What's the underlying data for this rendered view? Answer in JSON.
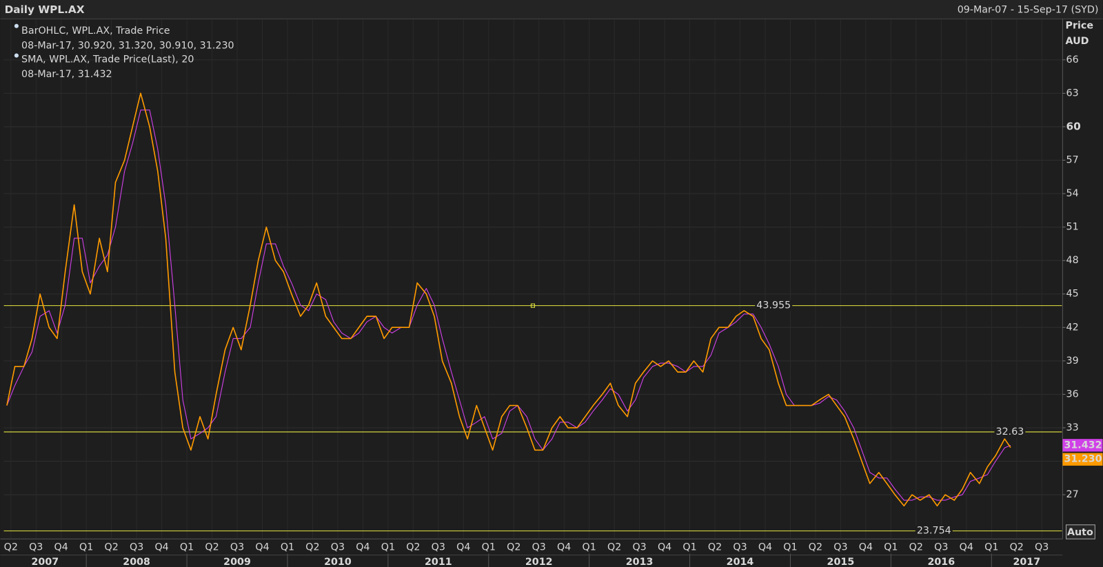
{
  "chart_data": {
    "type": "line",
    "title": "Daily WPL.AX",
    "subtitle": "09-Mar-07 - 15-Sep-17 (SYD)",
    "y_label": "Price",
    "y_unit": "AUD",
    "scale_mode": "Auto",
    "x": [
      2007.21,
      2007.29,
      2007.38,
      2007.46,
      2007.54,
      2007.63,
      2007.71,
      2007.79,
      2007.88,
      2007.96,
      2008.04,
      2008.13,
      2008.21,
      2008.29,
      2008.38,
      2008.46,
      2008.54,
      2008.63,
      2008.71,
      2008.79,
      2008.88,
      2008.96,
      2009.04,
      2009.13,
      2009.21,
      2009.29,
      2009.38,
      2009.46,
      2009.54,
      2009.63,
      2009.71,
      2009.79,
      2009.88,
      2009.96,
      2010.04,
      2010.13,
      2010.21,
      2010.29,
      2010.38,
      2010.46,
      2010.54,
      2010.63,
      2010.71,
      2010.79,
      2010.88,
      2010.96,
      2011.04,
      2011.13,
      2011.21,
      2011.29,
      2011.38,
      2011.46,
      2011.54,
      2011.63,
      2011.71,
      2011.79,
      2011.88,
      2011.96,
      2012.04,
      2012.13,
      2012.21,
      2012.29,
      2012.38,
      2012.46,
      2012.54,
      2012.63,
      2012.71,
      2012.79,
      2012.88,
      2012.96,
      2013.04,
      2013.13,
      2013.21,
      2013.29,
      2013.38,
      2013.46,
      2013.54,
      2013.63,
      2013.71,
      2013.79,
      2013.88,
      2013.96,
      2014.04,
      2014.13,
      2014.21,
      2014.29,
      2014.38,
      2014.46,
      2014.54,
      2014.63,
      2014.71,
      2014.79,
      2014.88,
      2014.96,
      2015.04,
      2015.13,
      2015.21,
      2015.29,
      2015.38,
      2015.46,
      2015.54,
      2015.63,
      2015.71,
      2015.79,
      2015.88,
      2015.96,
      2016.04,
      2016.13,
      2016.21,
      2016.29,
      2016.38,
      2016.46,
      2016.54,
      2016.63,
      2016.71,
      2016.79,
      2016.88,
      2016.96,
      2017.04,
      2017.13,
      2017.19
    ],
    "series": [
      {
        "name": "BarOHLC, WPL.AX, Trade Price",
        "readout": "08-Mar-17, 30.920, 31.320, 30.910, 31.230",
        "color": "#ff9a00",
        "last_value_label": "31.230",
        "values": [
          35,
          38.5,
          38.5,
          41,
          45,
          42,
          41,
          47,
          53,
          47,
          45,
          50,
          47,
          55,
          57,
          60,
          63,
          60,
          56,
          50,
          38,
          33,
          31,
          34,
          32,
          36,
          40,
          42,
          40,
          44,
          48,
          51,
          48,
          47,
          45,
          43,
          44,
          46,
          43,
          42,
          41,
          41,
          42,
          43,
          43,
          41,
          42,
          42,
          42,
          46,
          45,
          43,
          39,
          37,
          34,
          32,
          35,
          33,
          31,
          34,
          35,
          35,
          33,
          31,
          31,
          33,
          34,
          33,
          33,
          34,
          35,
          36,
          37,
          35,
          34,
          37,
          38,
          39,
          38.5,
          39,
          38,
          38,
          39,
          38,
          41,
          42,
          42,
          43,
          43.5,
          43,
          41,
          40,
          37,
          35,
          35,
          35,
          35,
          35.5,
          36,
          35,
          34,
          32,
          30,
          28,
          29,
          28,
          27,
          26,
          27,
          26.5,
          27,
          26,
          27,
          26.5,
          27.5,
          29,
          28,
          29.5,
          30.5,
          32,
          31.23
        ]
      },
      {
        "name": "SMA, WPL.AX, Trade Price(Last),  20",
        "readout": "08-Mar-17, 31.432",
        "color": "#d040e8",
        "last_value_label": "31.432",
        "values": [
          35,
          36.8,
          38.5,
          39.8,
          43,
          43.5,
          41.5,
          44,
          50,
          50,
          46,
          47.5,
          48.5,
          51,
          56,
          58.5,
          61.5,
          61.5,
          58,
          53,
          44,
          35.5,
          32,
          32.5,
          33,
          34,
          38,
          41,
          41,
          42,
          46,
          49.5,
          49.5,
          47.5,
          46,
          44,
          43.5,
          45,
          44.5,
          42.5,
          41.5,
          41,
          41.5,
          42.5,
          43,
          42,
          41.5,
          42,
          42,
          44,
          45.5,
          44,
          41,
          38,
          35.5,
          33,
          33.5,
          34,
          32,
          32.5,
          34.5,
          35,
          34,
          32,
          31,
          32,
          33.5,
          33.5,
          33,
          33.5,
          34.5,
          35.5,
          36.5,
          36,
          34.5,
          35.5,
          37.5,
          38.5,
          38.8,
          38.8,
          38.5,
          38,
          38.5,
          38.5,
          39.5,
          41.5,
          42,
          42.5,
          43.2,
          43.2,
          42,
          40.5,
          38.5,
          36,
          35,
          35,
          35,
          35.2,
          35.8,
          35.5,
          34.5,
          33,
          31,
          29,
          28.5,
          28.5,
          27.5,
          26.5,
          26.5,
          26.8,
          26.8,
          26.5,
          26.5,
          26.8,
          27,
          28.2,
          28.5,
          28.8,
          30,
          31.2,
          31.432
        ]
      }
    ],
    "hlines": [
      43.955,
      32.63,
      23.754
    ],
    "hline_color": "#e8e840",
    "xlim": [
      2007.18,
      2017.7
    ],
    "ylim": [
      23.1,
      69.6
    ],
    "yticks": [
      27,
      30,
      33,
      36,
      39,
      42,
      45,
      48,
      51,
      54,
      57,
      60,
      63,
      66
    ],
    "bold_yticks": [
      30,
      60
    ],
    "xticks": [
      {
        "value": 2007.25,
        "label": "Q2"
      },
      {
        "value": 2007.5,
        "label": "Q3"
      },
      {
        "value": 2007.75,
        "label": "Q4"
      },
      {
        "value": 2008,
        "label": "Q1"
      },
      {
        "value": 2008.25,
        "label": "Q2"
      },
      {
        "value": 2008.5,
        "label": "Q3"
      },
      {
        "value": 2008.75,
        "label": "Q4"
      },
      {
        "value": 2009,
        "label": "Q1"
      },
      {
        "value": 2009.25,
        "label": "Q2"
      },
      {
        "value": 2009.5,
        "label": "Q3"
      },
      {
        "value": 2009.75,
        "label": "Q4"
      },
      {
        "value": 2010,
        "label": "Q1"
      },
      {
        "value": 2010.25,
        "label": "Q2"
      },
      {
        "value": 2010.5,
        "label": "Q3"
      },
      {
        "value": 2010.75,
        "label": "Q4"
      },
      {
        "value": 2011,
        "label": "Q1"
      },
      {
        "value": 2011.25,
        "label": "Q2"
      },
      {
        "value": 2011.5,
        "label": "Q3"
      },
      {
        "value": 2011.75,
        "label": "Q4"
      },
      {
        "value": 2012,
        "label": "Q1"
      },
      {
        "value": 2012.25,
        "label": "Q2"
      },
      {
        "value": 2012.5,
        "label": "Q3"
      },
      {
        "value": 2012.75,
        "label": "Q4"
      },
      {
        "value": 2013,
        "label": "Q1"
      },
      {
        "value": 2013.25,
        "label": "Q2"
      },
      {
        "value": 2013.5,
        "label": "Q3"
      },
      {
        "value": 2013.75,
        "label": "Q4"
      },
      {
        "value": 2014,
        "label": "Q1"
      },
      {
        "value": 2014.25,
        "label": "Q2"
      },
      {
        "value": 2014.5,
        "label": "Q3"
      },
      {
        "value": 2014.75,
        "label": "Q4"
      },
      {
        "value": 2015,
        "label": "Q1"
      },
      {
        "value": 2015.25,
        "label": "Q2"
      },
      {
        "value": 2015.5,
        "label": "Q3"
      },
      {
        "value": 2015.75,
        "label": "Q4"
      },
      {
        "value": 2016,
        "label": "Q1"
      },
      {
        "value": 2016.25,
        "label": "Q2"
      },
      {
        "value": 2016.5,
        "label": "Q3"
      },
      {
        "value": 2016.75,
        "label": "Q4"
      },
      {
        "value": 2017,
        "label": "Q1"
      },
      {
        "value": 2017.25,
        "label": "Q2"
      },
      {
        "value": 2017.5,
        "label": "Q3"
      }
    ],
    "year_ticks": [
      {
        "value": 2007.59,
        "label": "2007"
      },
      {
        "value": 2008.5,
        "label": "2008"
      },
      {
        "value": 2009.5,
        "label": "2009"
      },
      {
        "value": 2010.5,
        "label": "2010"
      },
      {
        "value": 2011.5,
        "label": "2011"
      },
      {
        "value": 2012.5,
        "label": "2012"
      },
      {
        "value": 2013.5,
        "label": "2013"
      },
      {
        "value": 2014.5,
        "label": "2014"
      },
      {
        "value": 2015.5,
        "label": "2015"
      },
      {
        "value": 2016.5,
        "label": "2016"
      },
      {
        "value": 2017.35,
        "label": "2017"
      }
    ],
    "grid": true
  }
}
